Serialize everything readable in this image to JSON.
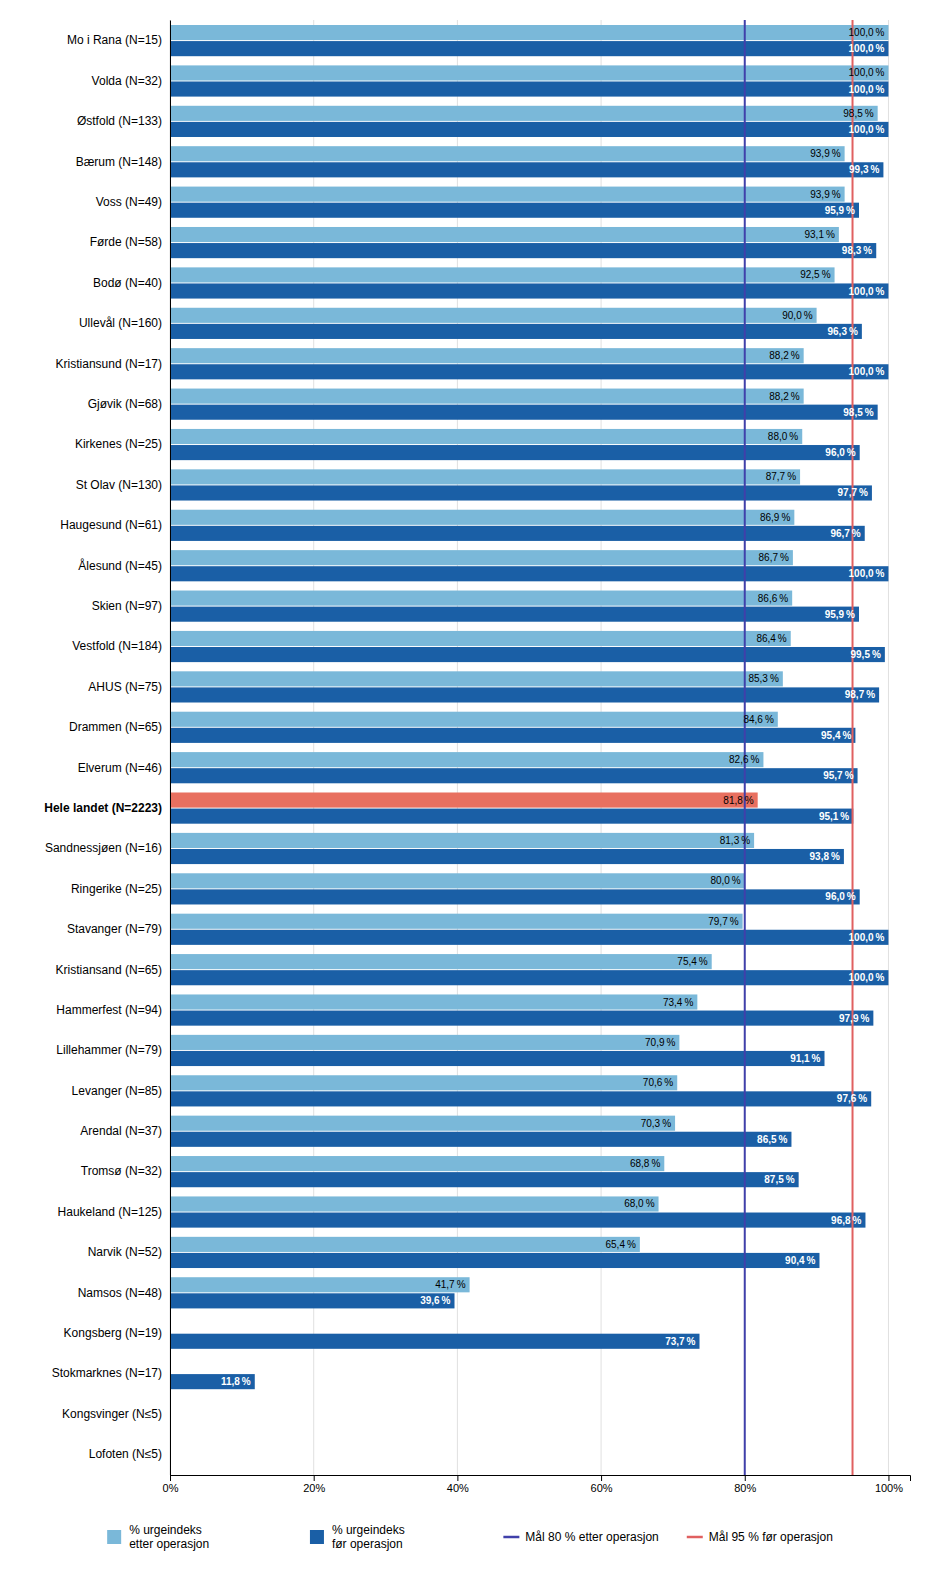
{
  "chart_data": {
    "type": "bar",
    "orientation": "horizontal",
    "categories": [
      "Mo i Rana (N=15)",
      "Volda (N=32)",
      "Østfold (N=133)",
      "Bærum (N=148)",
      "Voss (N=49)",
      "Førde (N=58)",
      "Bodø (N=40)",
      "Ullevål (N=160)",
      "Kristiansund (N=17)",
      "Gjøvik (N=68)",
      "Kirkenes (N=25)",
      "St Olav (N=130)",
      "Haugesund (N=61)",
      "Ålesund (N=45)",
      "Skien (N=97)",
      "Vestfold (N=184)",
      "AHUS (N=75)",
      "Drammen (N=65)",
      "Elverum (N=46)",
      "Hele landet (N=2223)",
      "Sandnessjøen (N=16)",
      "Ringerike (N=25)",
      "Stavanger (N=79)",
      "Kristiansand (N=65)",
      "Hammerfest (N=94)",
      "Lillehammer (N=79)",
      "Levanger (N=85)",
      "Arendal (N=37)",
      "Tromsø (N=32)",
      "Haukeland (N=125)",
      "Narvik (N=52)",
      "Namsos (N=48)",
      "Kongsberg (N=19)",
      "Stokmarknes (N=17)",
      "Kongsvinger (N≤5)",
      "Lofoten (N≤5)"
    ],
    "series": [
      {
        "name": "% urgeindeks\netter operasjon",
        "color": "#7ab8d9",
        "colors": [
          "#7ab8d9",
          "#7ab8d9",
          "#7ab8d9",
          "#7ab8d9",
          "#7ab8d9",
          "#7ab8d9",
          "#7ab8d9",
          "#7ab8d9",
          "#7ab8d9",
          "#7ab8d9",
          "#7ab8d9",
          "#7ab8d9",
          "#7ab8d9",
          "#7ab8d9",
          "#7ab8d9",
          "#7ab8d9",
          "#7ab8d9",
          "#7ab8d9",
          "#7ab8d9",
          "#e87060",
          "#7ab8d9",
          "#7ab8d9",
          "#7ab8d9",
          "#7ab8d9",
          "#7ab8d9",
          "#7ab8d9",
          "#7ab8d9",
          "#7ab8d9",
          "#7ab8d9",
          "#7ab8d9",
          "#7ab8d9",
          "#7ab8d9",
          "#7ab8d9",
          "#7ab8d9",
          "#7ab8d9",
          "#7ab8d9"
        ],
        "values": [
          100.0,
          100.0,
          98.5,
          93.9,
          93.9,
          93.1,
          92.5,
          90.0,
          88.2,
          88.2,
          88.0,
          87.7,
          86.9,
          86.7,
          86.6,
          86.4,
          85.3,
          84.6,
          82.6,
          81.8,
          81.3,
          80.0,
          79.7,
          75.4,
          73.4,
          70.9,
          70.6,
          70.3,
          68.8,
          68.0,
          65.4,
          41.7,
          0.0,
          0.0,
          0.0,
          0.0
        ],
        "value_labels": [
          "100,0 %",
          "100,0 %",
          "98,5 %",
          "93,9 %",
          "93,9 %",
          "93,1 %",
          "92,5 %",
          "90,0 %",
          "88,2 %",
          "88,2 %",
          "88,0 %",
          "87,7 %",
          "86,9 %",
          "86,7 %",
          "86,6 %",
          "86,4 %",
          "85,3 %",
          "84,6 %",
          "82,6 %",
          "81,8 %",
          "81,3 %",
          "80,0 %",
          "79,7 %",
          "75,4 %",
          "73,4 %",
          "70,9 %",
          "70,6 %",
          "70,3 %",
          "68,8 %",
          "68,0 %",
          "65,4 %",
          "41,7 %",
          null,
          null,
          null,
          null
        ]
      },
      {
        "name": "% urgeindeks\nfør operasjon",
        "color": "#1a5fa6",
        "values": [
          100.0,
          100.0,
          100.0,
          99.3,
          95.9,
          98.3,
          100.0,
          96.3,
          100.0,
          98.5,
          96.0,
          97.7,
          96.7,
          100.0,
          95.9,
          99.5,
          98.7,
          95.4,
          95.7,
          95.1,
          93.8,
          96.0,
          100.0,
          100.0,
          97.9,
          91.1,
          97.6,
          86.5,
          87.5,
          96.8,
          90.4,
          39.6,
          73.7,
          11.8,
          0.0,
          0.0
        ],
        "value_labels": [
          "100,0 %",
          "100,0 %",
          "100,0 %",
          "99,3 %",
          "95,9 %",
          "98,3 %",
          "100,0 %",
          "96,3 %",
          "100,0 %",
          "98,5 %",
          "96,0 %",
          "97,7 %",
          "96,7 %",
          "100,0 %",
          "95,9 %",
          "99,5 %",
          "98,7 %",
          "95,4 %",
          "95,7 %",
          "95,1 %",
          "93,8 %",
          "96,0 %",
          "100,0 %",
          "100,0 %",
          "97,9 %",
          "91,1 %",
          "97,6 %",
          "86,5 %",
          "87,5 %",
          "96,8 %",
          "90,4 %",
          "39,6 %",
          "73,7 %",
          "11,8 %",
          null,
          null
        ]
      }
    ],
    "reference_lines": [
      {
        "name": "Mål 80 % etter operasjon",
        "value": 80.0,
        "color": "#4040aa"
      },
      {
        "name": "Mål 95 % før operasjon",
        "value": 95.0,
        "color": "#e06060"
      }
    ],
    "xlim": [
      0,
      103
    ],
    "xticks": [
      {
        "value": 0,
        "label": "0%"
      },
      {
        "value": 20,
        "label": "20%"
      },
      {
        "value": 40,
        "label": "40%"
      },
      {
        "value": 60,
        "label": "60%"
      },
      {
        "value": 80,
        "label": "80%"
      },
      {
        "value": 100,
        "label": "100%"
      }
    ],
    "grid": true,
    "data_labels": true,
    "legend": "bottom"
  }
}
